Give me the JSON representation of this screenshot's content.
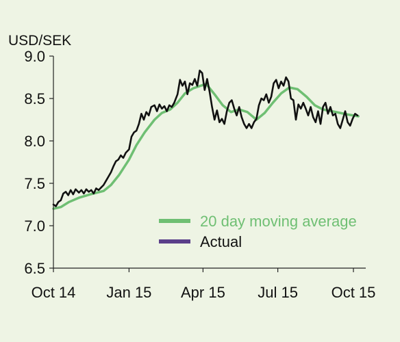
{
  "chart_data": {
    "type": "line",
    "ylabel": "USD/SEK",
    "ylim": [
      6.5,
      9.0
    ],
    "yticks": [
      "6.5",
      "7.0",
      "7.5",
      "8.0",
      "8.5",
      "9.0"
    ],
    "xlim": [
      "2014-10-01",
      "2015-10-16"
    ],
    "xticks": [
      {
        "date": "2014-10-01",
        "label": "Oct 14"
      },
      {
        "date": "2015-01-01",
        "label": "Jan 15"
      },
      {
        "date": "2015-04-01",
        "label": "Apr 15"
      },
      {
        "date": "2015-07-01",
        "label": "Jul 15"
      },
      {
        "date": "2015-10-01",
        "label": "Oct 15"
      }
    ],
    "legend_placement": "bottom-right",
    "grid": false,
    "series": [
      {
        "name": "20 day moving average",
        "color": "#6fbf73",
        "points": [
          [
            "2014-10-01",
            7.2
          ],
          [
            "2014-10-10",
            7.22
          ],
          [
            "2014-10-20",
            7.28
          ],
          [
            "2014-11-01",
            7.33
          ],
          [
            "2014-11-15",
            7.37
          ],
          [
            "2014-12-01",
            7.41
          ],
          [
            "2014-12-10",
            7.48
          ],
          [
            "2014-12-20",
            7.6
          ],
          [
            "2015-01-01",
            7.78
          ],
          [
            "2015-01-10",
            7.95
          ],
          [
            "2015-01-20",
            8.1
          ],
          [
            "2015-02-01",
            8.25
          ],
          [
            "2015-02-10",
            8.33
          ],
          [
            "2015-02-20",
            8.37
          ],
          [
            "2015-03-01",
            8.45
          ],
          [
            "2015-03-10",
            8.56
          ],
          [
            "2015-03-20",
            8.62
          ],
          [
            "2015-04-01",
            8.66
          ],
          [
            "2015-04-05",
            8.67
          ],
          [
            "2015-04-15",
            8.55
          ],
          [
            "2015-04-25",
            8.42
          ],
          [
            "2015-05-05",
            8.34
          ],
          [
            "2015-05-15",
            8.37
          ],
          [
            "2015-05-25",
            8.34
          ],
          [
            "2015-06-05",
            8.25
          ],
          [
            "2015-06-15",
            8.33
          ],
          [
            "2015-06-25",
            8.45
          ],
          [
            "2015-07-05",
            8.56
          ],
          [
            "2015-07-15",
            8.63
          ],
          [
            "2015-07-25",
            8.61
          ],
          [
            "2015-08-05",
            8.52
          ],
          [
            "2015-08-15",
            8.42
          ],
          [
            "2015-08-25",
            8.37
          ],
          [
            "2015-09-05",
            8.35
          ],
          [
            "2015-09-15",
            8.33
          ],
          [
            "2015-09-25",
            8.31
          ],
          [
            "2015-10-07",
            8.29
          ]
        ]
      },
      {
        "name": "Actual",
        "color": "#111111",
        "legend_color": "#5b3f8a",
        "points": [
          [
            "2014-10-01",
            7.25
          ],
          [
            "2014-10-04",
            7.23
          ],
          [
            "2014-10-07",
            7.28
          ],
          [
            "2014-10-10",
            7.3
          ],
          [
            "2014-10-13",
            7.38
          ],
          [
            "2014-10-16",
            7.4
          ],
          [
            "2014-10-19",
            7.36
          ],
          [
            "2014-10-22",
            7.42
          ],
          [
            "2014-10-25",
            7.37
          ],
          [
            "2014-10-28",
            7.43
          ],
          [
            "2014-11-01",
            7.39
          ],
          [
            "2014-11-04",
            7.42
          ],
          [
            "2014-11-07",
            7.38
          ],
          [
            "2014-11-10",
            7.43
          ],
          [
            "2014-11-13",
            7.4
          ],
          [
            "2014-11-16",
            7.42
          ],
          [
            "2014-11-19",
            7.38
          ],
          [
            "2014-11-22",
            7.44
          ],
          [
            "2014-11-25",
            7.42
          ],
          [
            "2014-11-28",
            7.45
          ],
          [
            "2014-12-01",
            7.48
          ],
          [
            "2014-12-04",
            7.53
          ],
          [
            "2014-12-07",
            7.58
          ],
          [
            "2014-12-10",
            7.63
          ],
          [
            "2014-12-13",
            7.7
          ],
          [
            "2014-12-16",
            7.76
          ],
          [
            "2014-12-19",
            7.78
          ],
          [
            "2014-12-22",
            7.83
          ],
          [
            "2014-12-25",
            7.8
          ],
          [
            "2014-12-28",
            7.86
          ],
          [
            "2015-01-01",
            7.9
          ],
          [
            "2015-01-04",
            8.05
          ],
          [
            "2015-01-07",
            8.1
          ],
          [
            "2015-01-10",
            8.12
          ],
          [
            "2015-01-13",
            8.2
          ],
          [
            "2015-01-16",
            8.32
          ],
          [
            "2015-01-19",
            8.25
          ],
          [
            "2015-01-22",
            8.34
          ],
          [
            "2015-01-25",
            8.3
          ],
          [
            "2015-01-28",
            8.4
          ],
          [
            "2015-02-01",
            8.42
          ],
          [
            "2015-02-04",
            8.35
          ],
          [
            "2015-02-07",
            8.43
          ],
          [
            "2015-02-10",
            8.38
          ],
          [
            "2015-02-13",
            8.41
          ],
          [
            "2015-02-16",
            8.35
          ],
          [
            "2015-02-19",
            8.42
          ],
          [
            "2015-02-22",
            8.4
          ],
          [
            "2015-02-25",
            8.45
          ],
          [
            "2015-03-01",
            8.55
          ],
          [
            "2015-03-04",
            8.72
          ],
          [
            "2015-03-07",
            8.65
          ],
          [
            "2015-03-10",
            8.7
          ],
          [
            "2015-03-13",
            8.55
          ],
          [
            "2015-03-16",
            8.68
          ],
          [
            "2015-03-19",
            8.66
          ],
          [
            "2015-03-22",
            8.73
          ],
          [
            "2015-03-25",
            8.65
          ],
          [
            "2015-03-28",
            8.83
          ],
          [
            "2015-03-31",
            8.8
          ],
          [
            "2015-04-03",
            8.6
          ],
          [
            "2015-04-06",
            8.73
          ],
          [
            "2015-04-09",
            8.58
          ],
          [
            "2015-04-12",
            8.4
          ],
          [
            "2015-04-15",
            8.25
          ],
          [
            "2015-04-18",
            8.36
          ],
          [
            "2015-04-21",
            8.22
          ],
          [
            "2015-04-24",
            8.26
          ],
          [
            "2015-04-27",
            8.2
          ],
          [
            "2015-04-30",
            8.35
          ],
          [
            "2015-05-03",
            8.45
          ],
          [
            "2015-05-06",
            8.48
          ],
          [
            "2015-05-09",
            8.38
          ],
          [
            "2015-05-12",
            8.3
          ],
          [
            "2015-05-15",
            8.4
          ],
          [
            "2015-05-18",
            8.28
          ],
          [
            "2015-05-21",
            8.2
          ],
          [
            "2015-05-24",
            8.15
          ],
          [
            "2015-05-27",
            8.2
          ],
          [
            "2015-05-30",
            8.15
          ],
          [
            "2015-06-02",
            8.22
          ],
          [
            "2015-06-05",
            8.26
          ],
          [
            "2015-06-08",
            8.42
          ],
          [
            "2015-06-11",
            8.5
          ],
          [
            "2015-06-14",
            8.48
          ],
          [
            "2015-06-17",
            8.55
          ],
          [
            "2015-06-20",
            8.45
          ],
          [
            "2015-06-23",
            8.52
          ],
          [
            "2015-06-26",
            8.68
          ],
          [
            "2015-06-29",
            8.72
          ],
          [
            "2015-07-02",
            8.62
          ],
          [
            "2015-07-05",
            8.7
          ],
          [
            "2015-07-08",
            8.65
          ],
          [
            "2015-07-11",
            8.75
          ],
          [
            "2015-07-14",
            8.7
          ],
          [
            "2015-07-17",
            8.5
          ],
          [
            "2015-07-20",
            8.48
          ],
          [
            "2015-07-23",
            8.25
          ],
          [
            "2015-07-26",
            8.43
          ],
          [
            "2015-07-29",
            8.38
          ],
          [
            "2015-08-01",
            8.45
          ],
          [
            "2015-08-04",
            8.38
          ],
          [
            "2015-08-07",
            8.3
          ],
          [
            "2015-08-10",
            8.4
          ],
          [
            "2015-08-13",
            8.28
          ],
          [
            "2015-08-16",
            8.22
          ],
          [
            "2015-08-19",
            8.35
          ],
          [
            "2015-08-22",
            8.2
          ],
          [
            "2015-08-25",
            8.4
          ],
          [
            "2015-08-28",
            8.45
          ],
          [
            "2015-08-31",
            8.32
          ],
          [
            "2015-09-03",
            8.4
          ],
          [
            "2015-09-06",
            8.3
          ],
          [
            "2015-09-09",
            8.32
          ],
          [
            "2015-09-12",
            8.2
          ],
          [
            "2015-09-15",
            8.15
          ],
          [
            "2015-09-18",
            8.25
          ],
          [
            "2015-09-21",
            8.35
          ],
          [
            "2015-09-24",
            8.22
          ],
          [
            "2015-09-27",
            8.18
          ],
          [
            "2015-09-30",
            8.26
          ],
          [
            "2015-10-03",
            8.32
          ],
          [
            "2015-10-06",
            8.3
          ]
        ]
      }
    ]
  }
}
